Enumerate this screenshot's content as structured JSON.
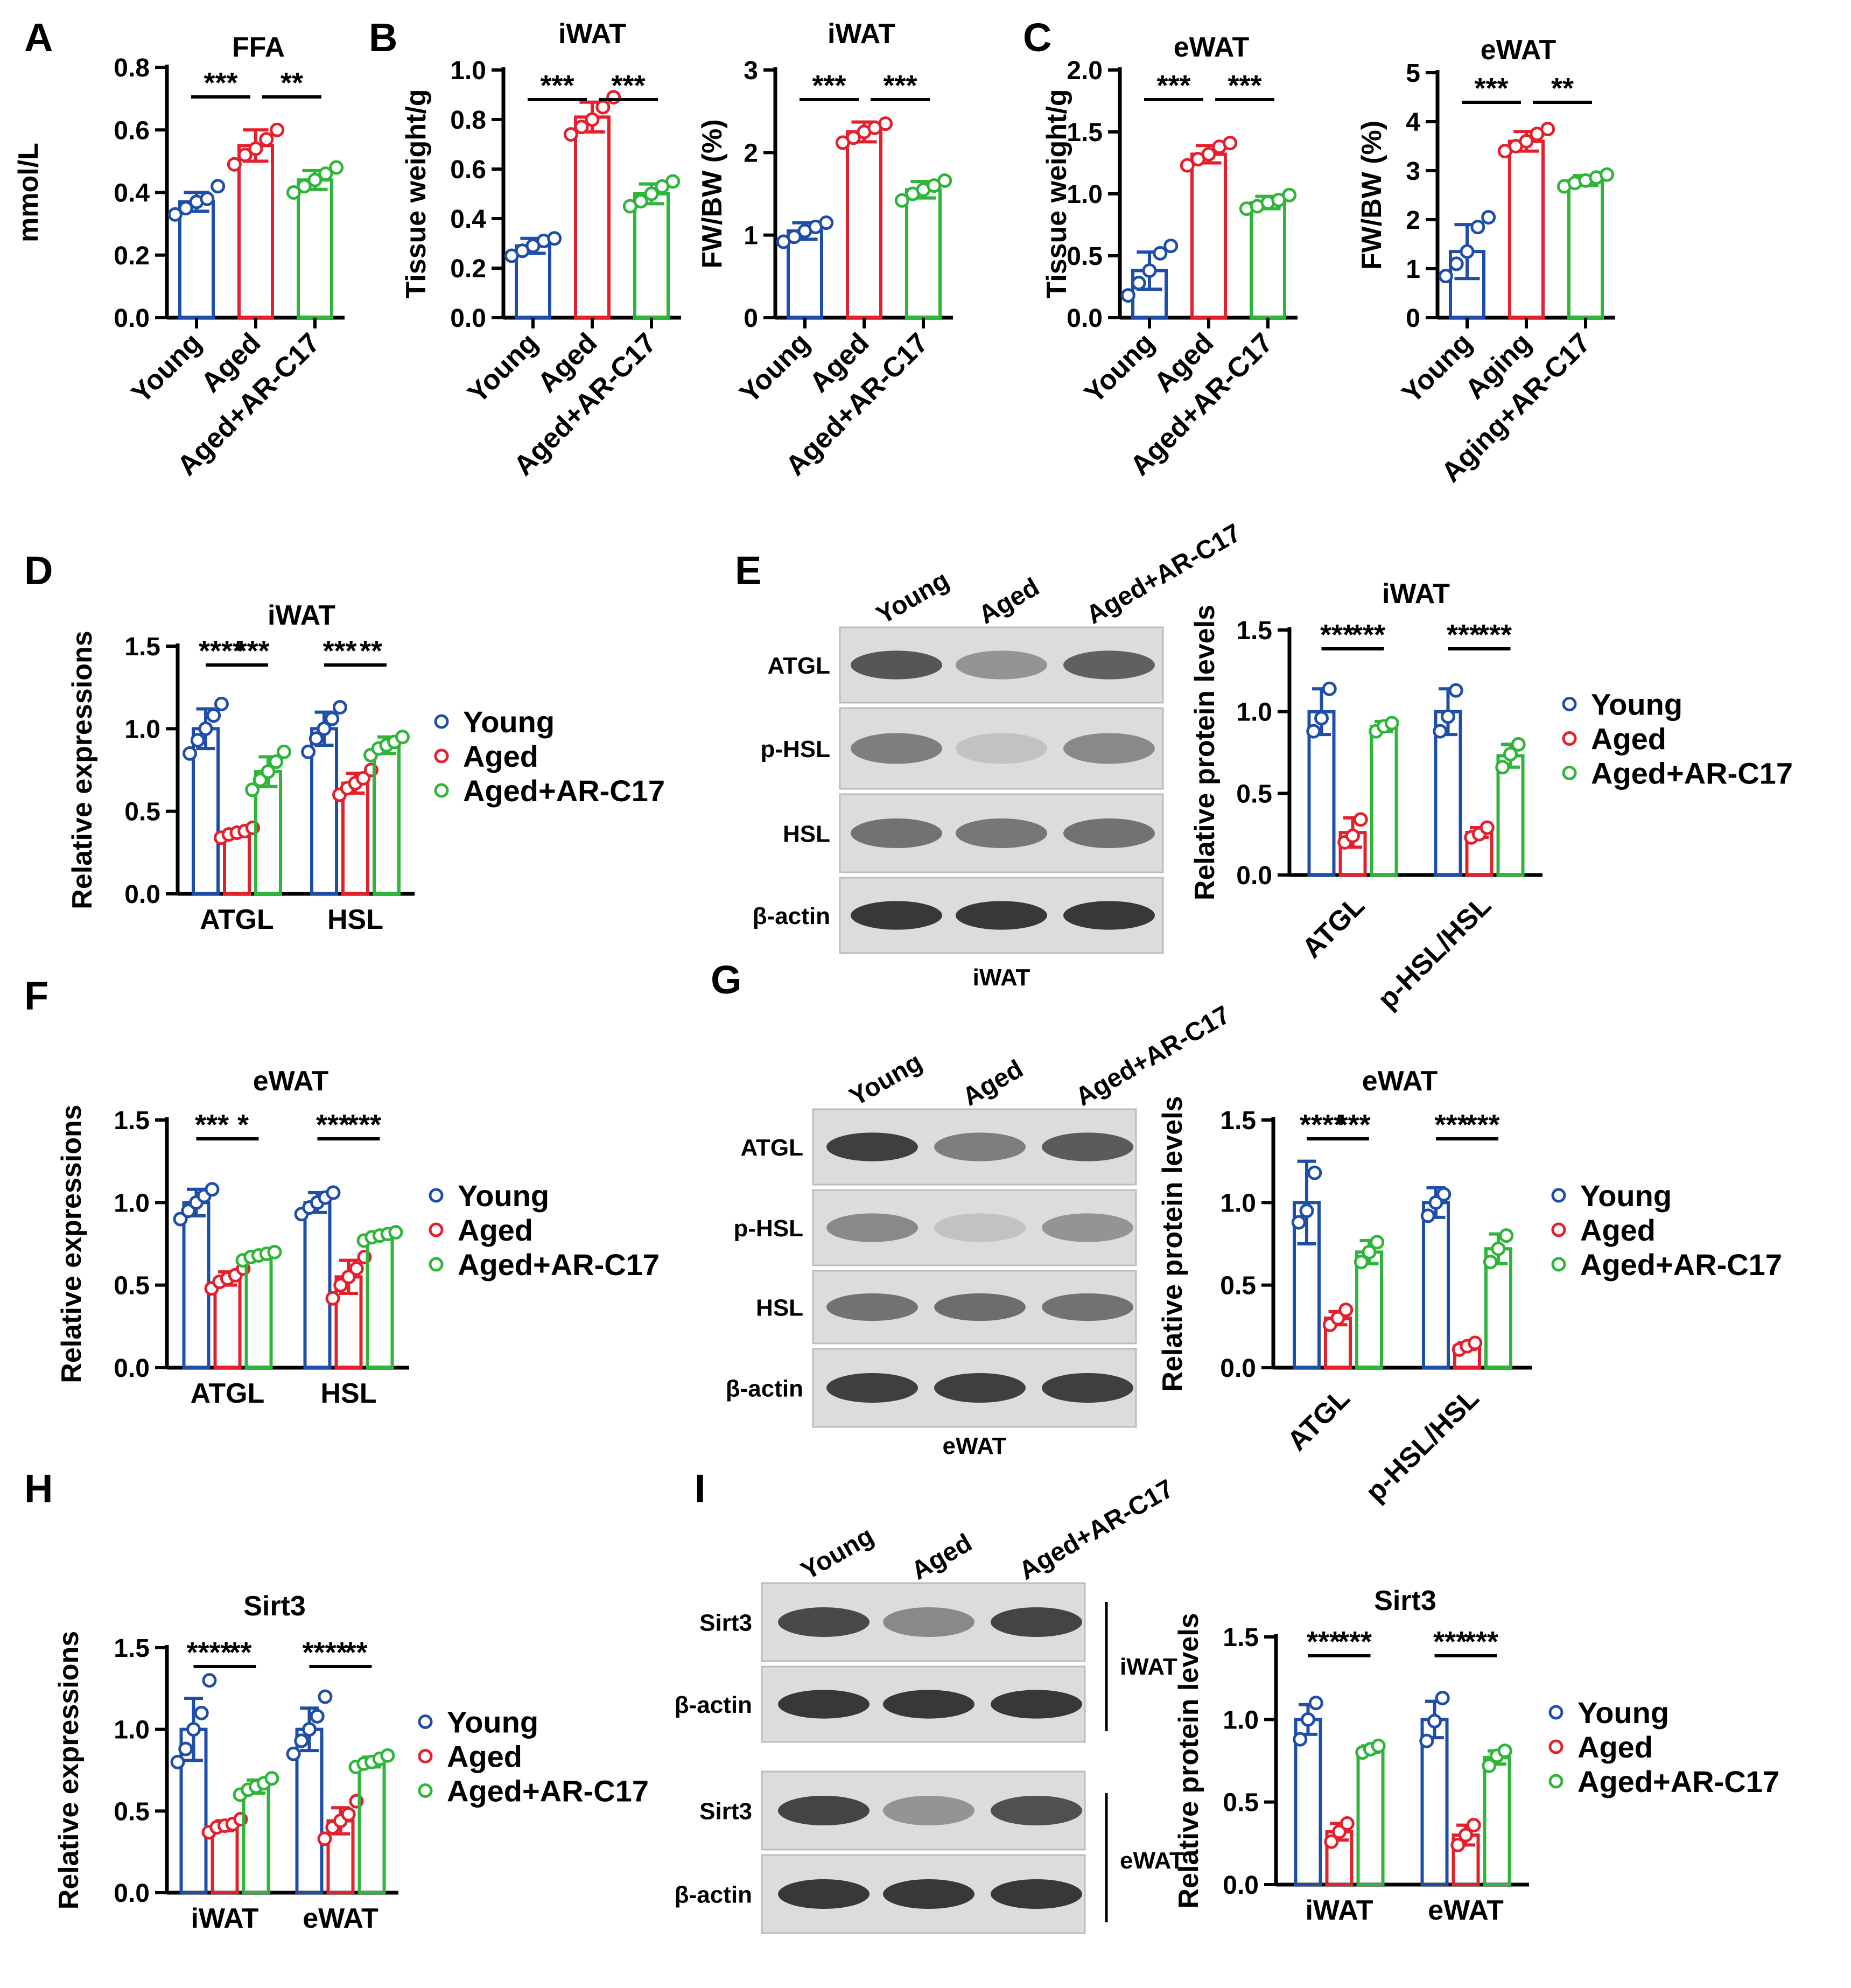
{
  "colors": {
    "young": "#1f4eaa",
    "aged": "#e5202c",
    "treat": "#2fb53a",
    "axis": "#000000"
  },
  "panel_labels": {
    "A": "A",
    "B": "B",
    "C": "C",
    "D": "D",
    "E": "E",
    "F": "F",
    "G": "G",
    "H": "H",
    "I": "I"
  },
  "legend": {
    "young": "Young",
    "aged": "Aged",
    "treat": "Aged+AR-C17"
  },
  "blots": {
    "E": {
      "lanes": [
        "Young",
        "Aged",
        "Aged+AR-C17"
      ],
      "rows": [
        "ATGL",
        "p-HSL",
        "HSL",
        "β-actin"
      ],
      "tissue": "iWAT"
    },
    "G": {
      "lanes": [
        "Young",
        "Aged",
        "Aged+AR-C17"
      ],
      "rows": [
        "ATGL",
        "p-HSL",
        "HSL",
        "β-actin"
      ],
      "tissue": "eWAT"
    },
    "I": {
      "lanes": [
        "Young",
        "Aged",
        "Aged+AR-C17"
      ],
      "rows": [
        "Sirt3",
        "β-actin",
        "Sirt3",
        "β-actin"
      ],
      "tissues": [
        "iWAT",
        "eWAT"
      ]
    }
  },
  "chart_data": [
    {
      "id": "A",
      "type": "bar",
      "title": "FFA",
      "ylabel": "mmol/L",
      "ylim": [
        0,
        0.8
      ],
      "yticks": [
        "0.0",
        "0.2",
        "0.4",
        "0.6",
        "0.8"
      ],
      "categories": [
        "Young",
        "Aged",
        "Aged+AR-C17"
      ],
      "values": [
        0.37,
        0.55,
        0.44
      ],
      "errors": [
        0.03,
        0.05,
        0.03
      ],
      "points": [
        [
          0.33,
          0.35,
          0.37,
          0.38,
          0.42
        ],
        [
          0.49,
          0.52,
          0.54,
          0.57,
          0.6
        ],
        [
          0.4,
          0.42,
          0.44,
          0.46,
          0.48
        ]
      ],
      "sig": [
        "***",
        "**"
      ]
    },
    {
      "id": "B1",
      "type": "bar",
      "title": "iWAT",
      "ylabel": "Tissue weight/g",
      "ylim": [
        0,
        1.0
      ],
      "yticks": [
        "0.0",
        "0.2",
        "0.4",
        "0.6",
        "0.8",
        "1.0"
      ],
      "categories": [
        "Young",
        "Aged",
        "Aged+AR-C17"
      ],
      "values": [
        0.29,
        0.81,
        0.5
      ],
      "errors": [
        0.03,
        0.06,
        0.04
      ],
      "points": [
        [
          0.25,
          0.27,
          0.29,
          0.31,
          0.32
        ],
        [
          0.74,
          0.77,
          0.8,
          0.85,
          0.89
        ],
        [
          0.45,
          0.47,
          0.5,
          0.53,
          0.55
        ]
      ],
      "sig": [
        "***",
        "***"
      ]
    },
    {
      "id": "B2",
      "type": "bar",
      "title": "iWAT",
      "ylabel": "FW/BW (%)",
      "ylim": [
        0,
        3
      ],
      "yticks": [
        "0",
        "1",
        "2",
        "3"
      ],
      "categories": [
        "Young",
        "Aged",
        "Aged+AR-C17"
      ],
      "values": [
        1.05,
        2.25,
        1.55
      ],
      "errors": [
        0.1,
        0.12,
        0.1
      ],
      "points": [
        [
          0.92,
          0.98,
          1.05,
          1.1,
          1.15
        ],
        [
          2.12,
          2.18,
          2.25,
          2.3,
          2.35
        ],
        [
          1.42,
          1.5,
          1.55,
          1.6,
          1.66
        ]
      ],
      "sig": [
        "***",
        "***"
      ]
    },
    {
      "id": "C1",
      "type": "bar",
      "title": "eWAT",
      "ylabel": "Tissue weight/g",
      "ylim": [
        0,
        2.0
      ],
      "yticks": [
        "0.0",
        "0.5",
        "1.0",
        "1.5",
        "2.0"
      ],
      "categories": [
        "Young",
        "Aged",
        "Aged+AR-C17"
      ],
      "values": [
        0.38,
        1.32,
        0.93
      ],
      "errors": [
        0.15,
        0.07,
        0.05
      ],
      "points": [
        [
          0.18,
          0.28,
          0.38,
          0.52,
          0.58
        ],
        [
          1.23,
          1.28,
          1.32,
          1.38,
          1.41
        ],
        [
          0.88,
          0.9,
          0.93,
          0.95,
          0.99
        ]
      ],
      "sig": [
        "***",
        "***"
      ]
    },
    {
      "id": "C2",
      "type": "bar",
      "title": "eWAT",
      "ylabel": "FW/BW (%)",
      "ylim": [
        0,
        5
      ],
      "yticks": [
        "0",
        "1",
        "2",
        "3",
        "4",
        "5"
      ],
      "categories": [
        "Young",
        "Aging",
        "Aging+AR-C17"
      ],
      "values": [
        1.35,
        3.6,
        2.8
      ],
      "errors": [
        0.55,
        0.2,
        0.1
      ],
      "points": [
        [
          0.85,
          1.1,
          1.35,
          1.85,
          2.05
        ],
        [
          3.4,
          3.5,
          3.6,
          3.75,
          3.85
        ],
        [
          2.68,
          2.75,
          2.8,
          2.86,
          2.92
        ]
      ],
      "sig": [
        "***",
        "**"
      ]
    },
    {
      "id": "D",
      "type": "bar",
      "title": "iWAT",
      "ylabel": "Relative expressions",
      "ylim": [
        0,
        1.5
      ],
      "yticks": [
        "0.0",
        "0.5",
        "1.0",
        "1.5"
      ],
      "categories": [
        "ATGL",
        "HSL"
      ],
      "series": [
        {
          "name": "Young",
          "values": [
            1.0,
            1.0
          ]
        },
        {
          "name": "Aged",
          "values": [
            0.37,
            0.67
          ]
        },
        {
          "name": "Aged+AR-C17",
          "values": [
            0.74,
            0.9
          ]
        }
      ],
      "errors": [
        [
          0.12,
          0.1
        ],
        [
          0.02,
          0.06
        ],
        [
          0.09,
          0.05
        ]
      ],
      "points": [
        [
          [
            0.85,
            0.93,
            1.0,
            1.08,
            1.15
          ],
          [
            0.86,
            0.94,
            1.0,
            1.06,
            1.13
          ]
        ],
        [
          [
            0.34,
            0.36,
            0.37,
            0.38,
            0.4
          ],
          [
            0.6,
            0.64,
            0.67,
            0.7,
            0.75
          ]
        ],
        [
          [
            0.63,
            0.69,
            0.74,
            0.8,
            0.86
          ],
          [
            0.84,
            0.88,
            0.9,
            0.92,
            0.95
          ]
        ]
      ],
      "sig": [
        [
          "****",
          "***"
        ],
        [
          "***",
          "**"
        ]
      ]
    },
    {
      "id": "E",
      "type": "bar",
      "title": "iWAT",
      "ylabel": "Relative protein levels",
      "ylim": [
        0,
        1.5
      ],
      "yticks": [
        "0.0",
        "0.5",
        "1.0",
        "1.5"
      ],
      "categories": [
        "ATGL",
        "p-HSL/HSL"
      ],
      "series": [
        {
          "name": "Young",
          "values": [
            1.0,
            1.0
          ]
        },
        {
          "name": "Aged",
          "values": [
            0.26,
            0.26
          ]
        },
        {
          "name": "Aged+AR-C17",
          "values": [
            0.91,
            0.73
          ]
        }
      ],
      "errors": [
        [
          0.14,
          0.14
        ],
        [
          0.09,
          0.03
        ],
        [
          0.03,
          0.07
        ]
      ],
      "points": [
        [
          [
            0.88,
            0.96,
            1.14
          ],
          [
            0.88,
            0.97,
            1.13
          ]
        ],
        [
          [
            0.2,
            0.24,
            0.34
          ],
          [
            0.23,
            0.25,
            0.29
          ]
        ],
        [
          [
            0.88,
            0.91,
            0.93
          ],
          [
            0.66,
            0.74,
            0.8
          ]
        ]
      ],
      "sig": [
        [
          "***",
          "***"
        ],
        [
          "***",
          "***"
        ]
      ]
    },
    {
      "id": "F",
      "type": "bar",
      "title": "eWAT",
      "ylabel": "Relative expressions",
      "ylim": [
        0,
        1.5
      ],
      "yticks": [
        "0.0",
        "0.5",
        "1.0",
        "1.5"
      ],
      "categories": [
        "ATGL",
        "HSL"
      ],
      "series": [
        {
          "name": "Young",
          "values": [
            1.0,
            1.0
          ]
        },
        {
          "name": "Aged",
          "values": [
            0.54,
            0.55
          ]
        },
        {
          "name": "Aged+AR-C17",
          "values": [
            0.68,
            0.8
          ]
        }
      ],
      "errors": [
        [
          0.08,
          0.06
        ],
        [
          0.04,
          0.1
        ],
        [
          0.02,
          0.02
        ]
      ],
      "points": [
        [
          [
            0.9,
            0.95,
            1.0,
            1.04,
            1.08
          ],
          [
            0.93,
            0.97,
            1.0,
            1.03,
            1.06
          ]
        ],
        [
          [
            0.48,
            0.52,
            0.54,
            0.56,
            0.6
          ],
          [
            0.42,
            0.5,
            0.55,
            0.6,
            0.67
          ]
        ],
        [
          [
            0.65,
            0.67,
            0.68,
            0.69,
            0.7
          ],
          [
            0.77,
            0.79,
            0.8,
            0.81,
            0.82
          ]
        ]
      ],
      "sig": [
        [
          "***",
          "*"
        ],
        [
          "***",
          "***"
        ]
      ]
    },
    {
      "id": "G",
      "type": "bar",
      "title": "eWAT",
      "ylabel": "Relative protein levels",
      "ylim": [
        0,
        1.5
      ],
      "yticks": [
        "0.0",
        "0.5",
        "1.0",
        "1.5"
      ],
      "categories": [
        "ATGL",
        "p-HSL/HSL"
      ],
      "series": [
        {
          "name": "Young",
          "values": [
            1.0,
            1.0
          ]
        },
        {
          "name": "Aged",
          "values": [
            0.3,
            0.13
          ]
        },
        {
          "name": "Aged+AR-C17",
          "values": [
            0.7,
            0.72
          ]
        }
      ],
      "errors": [
        [
          0.25,
          0.09
        ],
        [
          0.04,
          0.02
        ],
        [
          0.07,
          0.09
        ]
      ],
      "points": [
        [
          [
            0.88,
            0.95,
            1.18
          ],
          [
            0.92,
            1.0,
            1.05
          ]
        ],
        [
          [
            0.26,
            0.3,
            0.35
          ],
          [
            0.11,
            0.13,
            0.15
          ]
        ],
        [
          [
            0.64,
            0.7,
            0.76
          ],
          [
            0.64,
            0.72,
            0.8
          ]
        ]
      ],
      "sig": [
        [
          "****",
          "***"
        ],
        [
          "***",
          "***"
        ]
      ]
    },
    {
      "id": "H",
      "type": "bar",
      "title": "Sirt3",
      "ylabel": "Relative expressions",
      "ylim": [
        0,
        1.5
      ],
      "yticks": [
        "0.0",
        "0.5",
        "1.0",
        "1.5"
      ],
      "categories": [
        "iWAT",
        "eWAT"
      ],
      "series": [
        {
          "name": "Young",
          "values": [
            1.0,
            1.0
          ]
        },
        {
          "name": "Aged",
          "values": [
            0.41,
            0.44
          ]
        },
        {
          "name": "Aged+AR-C17",
          "values": [
            0.65,
            0.8
          ]
        }
      ],
      "errors": [
        [
          0.19,
          0.13
        ],
        [
          0.03,
          0.08
        ],
        [
          0.04,
          0.03
        ]
      ],
      "points": [
        [
          [
            0.8,
            0.88,
            1.0,
            1.1,
            1.3
          ],
          [
            0.85,
            0.93,
            1.0,
            1.08,
            1.2
          ]
        ],
        [
          [
            0.37,
            0.4,
            0.41,
            0.42,
            0.45
          ],
          [
            0.33,
            0.4,
            0.44,
            0.48,
            0.56
          ]
        ],
        [
          [
            0.6,
            0.63,
            0.65,
            0.67,
            0.7
          ],
          [
            0.77,
            0.79,
            0.8,
            0.82,
            0.84
          ]
        ]
      ],
      "sig": [
        [
          "****",
          "**"
        ],
        [
          "****",
          "**"
        ]
      ]
    },
    {
      "id": "I",
      "type": "bar",
      "title": "Sirt3",
      "ylabel": "Relative protein levels",
      "ylim": [
        0,
        1.5
      ],
      "yticks": [
        "0.0",
        "0.5",
        "1.0",
        "1.5"
      ],
      "categories": [
        "iWAT",
        "eWAT"
      ],
      "series": [
        {
          "name": "Young",
          "values": [
            1.0,
            1.0
          ]
        },
        {
          "name": "Aged",
          "values": [
            0.32,
            0.3
          ]
        },
        {
          "name": "Aged+AR-C17",
          "values": [
            0.82,
            0.77
          ]
        }
      ],
      "errors": [
        [
          0.09,
          0.11
        ],
        [
          0.05,
          0.06
        ],
        [
          0.02,
          0.04
        ]
      ],
      "points": [
        [
          [
            0.88,
            1.0,
            1.1
          ],
          [
            0.87,
            0.99,
            1.13
          ]
        ],
        [
          [
            0.26,
            0.32,
            0.37
          ],
          [
            0.24,
            0.3,
            0.36
          ]
        ],
        [
          [
            0.8,
            0.82,
            0.84
          ],
          [
            0.72,
            0.78,
            0.81
          ]
        ]
      ],
      "sig": [
        [
          "***",
          "***"
        ],
        [
          "***",
          "***"
        ]
      ]
    }
  ]
}
